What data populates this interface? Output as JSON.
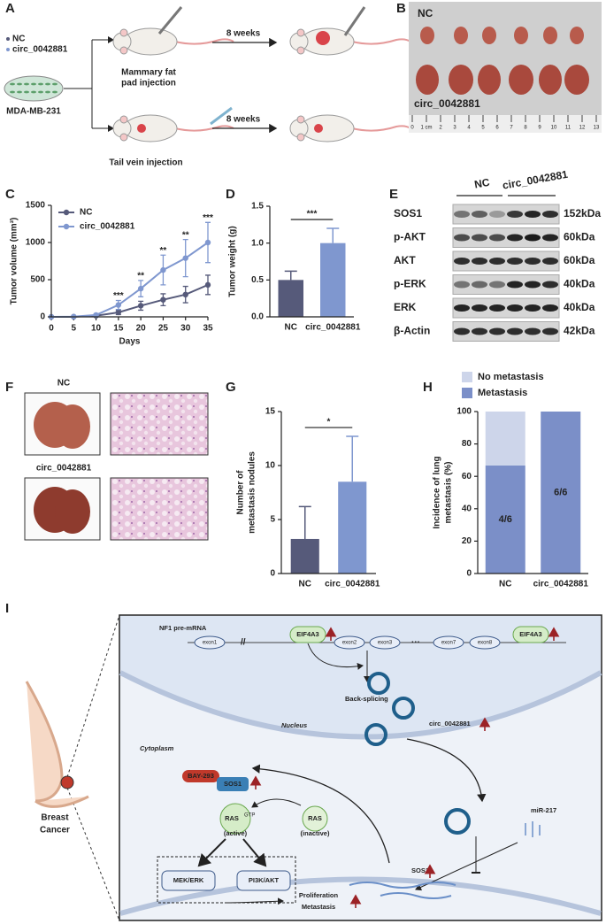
{
  "panel_a": {
    "letter": "A",
    "legend": [
      "NC",
      "circ_0042881"
    ],
    "cell_line": "MDA-MB-231",
    "arrow_1": "8 weeks",
    "injection_1": [
      "Mammary fat",
      "pad injection"
    ],
    "arrow_2": "8 weeks",
    "injection_2": "Tail vein injection"
  },
  "panel_b": {
    "letter": "B",
    "group_1": "NC",
    "group_2": "circ_0042881",
    "ruler": [
      "0",
      "1 cm",
      "2",
      "3",
      "4",
      "5",
      "6",
      "7",
      "8",
      "9",
      "10",
      "11",
      "12",
      "13"
    ]
  },
  "chart_data": [
    {
      "panel": "C",
      "type": "line",
      "x_label": "Days",
      "y_label": "Tumor volume (mm³)",
      "x": [
        0,
        5,
        10,
        15,
        20,
        25,
        30,
        35
      ],
      "xlim": [
        0,
        35
      ],
      "xticks": [
        0,
        5,
        10,
        15,
        20,
        25,
        30,
        35
      ],
      "ylim": [
        0,
        1500
      ],
      "yticks": [
        0,
        500,
        1000,
        1500
      ],
      "legend": "upper left",
      "series": [
        {
          "name": "NC",
          "color": "#565a7a",
          "values": [
            0,
            2,
            15,
            60,
            150,
            230,
            300,
            430
          ],
          "errors": [
            0,
            2,
            8,
            30,
            60,
            80,
            110,
            130
          ]
        },
        {
          "name": "circ_0042881",
          "color": "#7f97cf",
          "values": [
            0,
            3,
            25,
            160,
            380,
            630,
            790,
            1000
          ],
          "errors": [
            0,
            3,
            12,
            60,
            110,
            200,
            250,
            270
          ]
        }
      ],
      "significance": [
        {
          "x": 15,
          "label": "***"
        },
        {
          "x": 20,
          "label": "**"
        },
        {
          "x": 25,
          "label": "**"
        },
        {
          "x": 30,
          "label": "**"
        },
        {
          "x": 35,
          "label": "***"
        }
      ]
    },
    {
      "panel": "D",
      "type": "bar",
      "y_label": "Tumor weight (g)",
      "categories": [
        "NC",
        "circ_0042881"
      ],
      "values": [
        0.5,
        1.0
      ],
      "errors": [
        0.12,
        0.2
      ],
      "colors": [
        "#565a7a",
        "#7f97cf"
      ],
      "ylim": [
        0,
        1.5
      ],
      "yticks": [
        {
          "value": 0,
          "label": "0.0"
        },
        0.5,
        {
          "value": 1,
          "label": "1.0"
        },
        1.5
      ],
      "significance": "***"
    },
    {
      "panel": "G",
      "type": "bar",
      "y_label": [
        "Number of",
        "metastasis nodules"
      ],
      "categories": [
        "NC",
        "circ_0042881"
      ],
      "values": [
        3.2,
        8.5
      ],
      "errors": [
        3.0,
        4.2
      ],
      "colors": [
        "#565a7a",
        "#7f97cf"
      ],
      "ylim": [
        0,
        15
      ],
      "yticks": [
        0,
        5,
        10,
        15
      ],
      "significance": "*"
    },
    {
      "panel": "H",
      "type": "stacked-bar",
      "y_label": [
        "Incidence of lung",
        "metastasis (%)"
      ],
      "categories": [
        "NC",
        "circ_0042881"
      ],
      "series": [
        {
          "name": "Metastasis",
          "color": "#7b8fc8",
          "values": [
            66.7,
            100
          ]
        },
        {
          "name": "No metastasis",
          "color": "#cdd5ea",
          "values": [
            33.3,
            0
          ]
        }
      ],
      "bar_labels": [
        "4/6",
        "6/6"
      ],
      "ylim": [
        0,
        100
      ],
      "yticks": [
        0,
        20,
        40,
        60,
        80,
        100
      ],
      "legend": "top"
    }
  ],
  "panel_e": {
    "letter": "E",
    "groups": [
      "NC",
      "circ_0042881"
    ],
    "rows": [
      {
        "protein": "SOS1",
        "size": "152kDa"
      },
      {
        "protein": "p-AKT",
        "size": "60kDa"
      },
      {
        "protein": "AKT",
        "size": "60kDa"
      },
      {
        "protein": "p-ERK",
        "size": "40kDa"
      },
      {
        "protein": "ERK",
        "size": "40kDa"
      },
      {
        "protein": "β-Actin",
        "size": "42kDa"
      }
    ]
  },
  "panel_f": {
    "letter": "F",
    "groups": [
      "NC",
      "circ_0042881"
    ]
  },
  "panel_i": {
    "letter": "I",
    "pre_mrna": "NF1 pre-mRNA",
    "exons": [
      "exon1",
      "exon2",
      "exon3",
      "exon7",
      "exon8"
    ],
    "ellipsis": "···",
    "eif4a3": [
      "EIF4A3",
      "EIF4A3"
    ],
    "back_splicing": "Back-splicing",
    "circrna": "circ_0042881",
    "nucleus": "Nucleus",
    "cytoplasm": "Cytoplasm",
    "inhibitor": "BAY-293",
    "sos1_complex": "SOS1",
    "ras_active": "RAS",
    "ras_active_state": "GTP",
    "ras_active_note": "(active)",
    "ras_inactive": "RAS",
    "ras_inactive_note": "(inactive)",
    "pathways": [
      "MEK/ERK",
      "PI3K/AKT"
    ],
    "outcomes": [
      "Proliferation",
      "Metastasis"
    ],
    "sos1": "SOS1",
    "mirna": "miR-217",
    "organ": [
      "Breast",
      "Cancer"
    ]
  }
}
